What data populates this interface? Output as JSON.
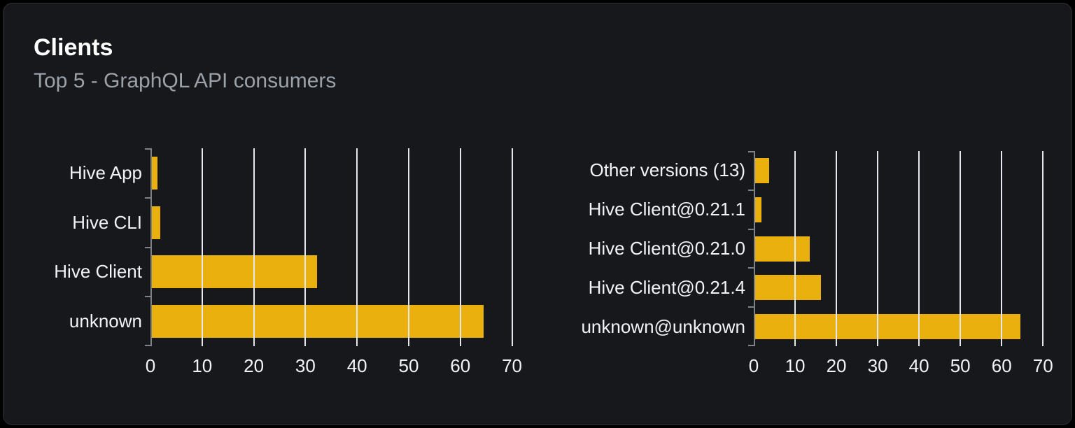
{
  "card": {
    "title": "Clients",
    "subtitle": "Top 5 - GraphQL API consumers"
  },
  "colors": {
    "page_bg": "#000000",
    "card_bg": "#17181c",
    "card_border": "#2b2e35",
    "bar": "#e9b00e",
    "grid_line": "#e4e7ee",
    "axis_line": "#7e828a",
    "title_text": "#ffffff",
    "subtitle_text": "#9aa1a9",
    "label_text": "#f2f3f5"
  },
  "chart_data": [
    {
      "type": "bar",
      "orientation": "horizontal",
      "categories": [
        "Hive App",
        "Hive CLI",
        "Hive Client",
        "unknown"
      ],
      "values": [
        1.3,
        1.9,
        32.2,
        64.5
      ],
      "xticks": [
        0,
        10,
        20,
        30,
        40,
        50,
        60,
        70
      ],
      "xlim": [
        0,
        72.5
      ],
      "grid": true,
      "legend_position": "none",
      "xlabel": "",
      "ylabel": ""
    },
    {
      "type": "bar",
      "orientation": "horizontal",
      "categories": [
        "Other versions (13)",
        "Hive Client@0.21.1",
        "Hive Client@0.21.0",
        "Hive Client@0.21.4",
        "unknown@unknown"
      ],
      "values": [
        3.8,
        1.8,
        13.5,
        16.3,
        64.5
      ],
      "xticks": [
        0,
        10,
        20,
        30,
        40,
        50,
        60,
        70
      ],
      "xlim": [
        0,
        72.5
      ],
      "grid": true,
      "legend_position": "none",
      "xlabel": "",
      "ylabel": ""
    }
  ]
}
